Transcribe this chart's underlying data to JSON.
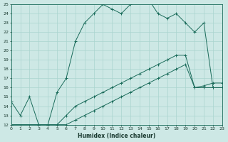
{
  "xlabel": "Humidex (Indice chaleur)",
  "bg_color": "#cde8e5",
  "line_color": "#1a6b5a",
  "grid_color": "#aad4cf",
  "xlim": [
    0,
    23
  ],
  "ylim": [
    12,
    25
  ],
  "xticks": [
    0,
    1,
    2,
    3,
    4,
    5,
    6,
    7,
    8,
    9,
    10,
    11,
    12,
    13,
    14,
    15,
    16,
    17,
    18,
    19,
    20,
    21,
    22,
    23
  ],
  "yticks": [
    12,
    13,
    14,
    15,
    16,
    17,
    18,
    19,
    20,
    21,
    22,
    23,
    24,
    25
  ],
  "line1_x": [
    0,
    1,
    2,
    3,
    4,
    5,
    6,
    7,
    8,
    9,
    10,
    11,
    12,
    13,
    14,
    15,
    16,
    17,
    18,
    19,
    20,
    21,
    22,
    23
  ],
  "line1_y": [
    14.5,
    13,
    15,
    12,
    12,
    15.5,
    17,
    21,
    23,
    24,
    25,
    24.5,
    24,
    25,
    25.5,
    25.5,
    24,
    23.5,
    24,
    23,
    22,
    23,
    16,
    16
  ],
  "line2_x": [
    0,
    3,
    4,
    5,
    6,
    7,
    8,
    9,
    10,
    11,
    12,
    13,
    14,
    15,
    16,
    17,
    18,
    19,
    20,
    21,
    22,
    23
  ],
  "line2_y": [
    12,
    12,
    12,
    12,
    13,
    14,
    14.5,
    15,
    15.5,
    16,
    16.5,
    17,
    17.5,
    18,
    18.5,
    19,
    19.5,
    19.5,
    16,
    16.2,
    16.5,
    16.5
  ],
  "line3_x": [
    0,
    3,
    4,
    5,
    6,
    7,
    8,
    9,
    10,
    11,
    12,
    13,
    14,
    15,
    16,
    17,
    18,
    19,
    20,
    21,
    22,
    23
  ],
  "line3_y": [
    12,
    12,
    12,
    12,
    12,
    12.5,
    13,
    13.5,
    14,
    14.5,
    15,
    15.5,
    16,
    16.5,
    17,
    17.5,
    18,
    18.5,
    16,
    16,
    16,
    16
  ]
}
